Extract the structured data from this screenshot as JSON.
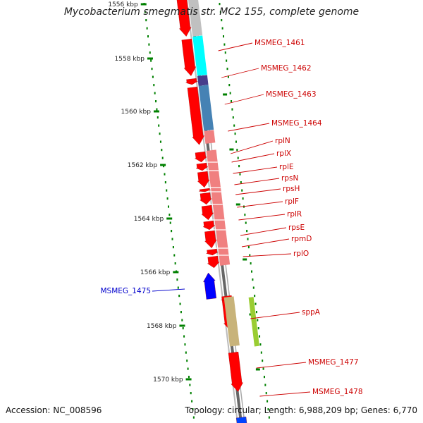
{
  "title": "Mycobacterium smegmatis str. MC2 155, complete genome",
  "footer": {
    "accession": "Accession: NC_008596",
    "stats": "Topology: circular; Length: 6,988,209 bp; Genes: 6,770"
  },
  "colors": {
    "forward_gene": "#ff0000",
    "reverse_gene": "#0000ff",
    "backbone": "#808080",
    "tick": "#008000",
    "forward_label": "#cc0000",
    "reverse_label": "#0000cc"
  },
  "scale": {
    "unit": "kbp",
    "tick_labels": [
      "1556 kbp",
      "1558 kbp",
      "1560 kbp",
      "1562 kbp",
      "1564 kbp",
      "1566 kbp",
      "1568 kbp",
      "1570 kbp"
    ]
  },
  "genes": [
    {
      "name": "MSMEG_1461",
      "strand": "forward",
      "cog_color": "#00ffff"
    },
    {
      "name": "MSMEG_1462",
      "strand": "forward",
      "cog_color": "#4682b4"
    },
    {
      "name": "MSMEG_1463",
      "strand": "forward",
      "cog_color": "#4682b4"
    },
    {
      "name": "MSMEG_1464",
      "strand": "forward",
      "cog_color": "#f08080"
    },
    {
      "name": "rplN",
      "strand": "forward",
      "cog_color": "#f08080"
    },
    {
      "name": "rplX",
      "strand": "forward",
      "cog_color": "#f08080"
    },
    {
      "name": "rplE",
      "strand": "forward",
      "cog_color": "#f08080"
    },
    {
      "name": "rpsN",
      "strand": "forward",
      "cog_color": "#f08080"
    },
    {
      "name": "rpsH",
      "strand": "forward",
      "cog_color": "#f08080"
    },
    {
      "name": "rplF",
      "strand": "forward",
      "cog_color": "#f08080"
    },
    {
      "name": "rplR",
      "strand": "forward",
      "cog_color": "#f08080"
    },
    {
      "name": "rpsE",
      "strand": "forward",
      "cog_color": "#f08080"
    },
    {
      "name": "rpmD",
      "strand": "forward",
      "cog_color": "#f08080"
    },
    {
      "name": "rplO",
      "strand": "forward",
      "cog_color": "#f08080"
    },
    {
      "name": "MSMEG_1475",
      "strand": "reverse",
      "cog_color": ""
    },
    {
      "name": "sppA",
      "strand": "forward",
      "cog_color": "#9acd32"
    },
    {
      "name": "MSMEG_1477",
      "strand": "forward",
      "cog_color": ""
    },
    {
      "name": "MSMEG_1478",
      "strand": "forward",
      "cog_color": ""
    }
  ]
}
